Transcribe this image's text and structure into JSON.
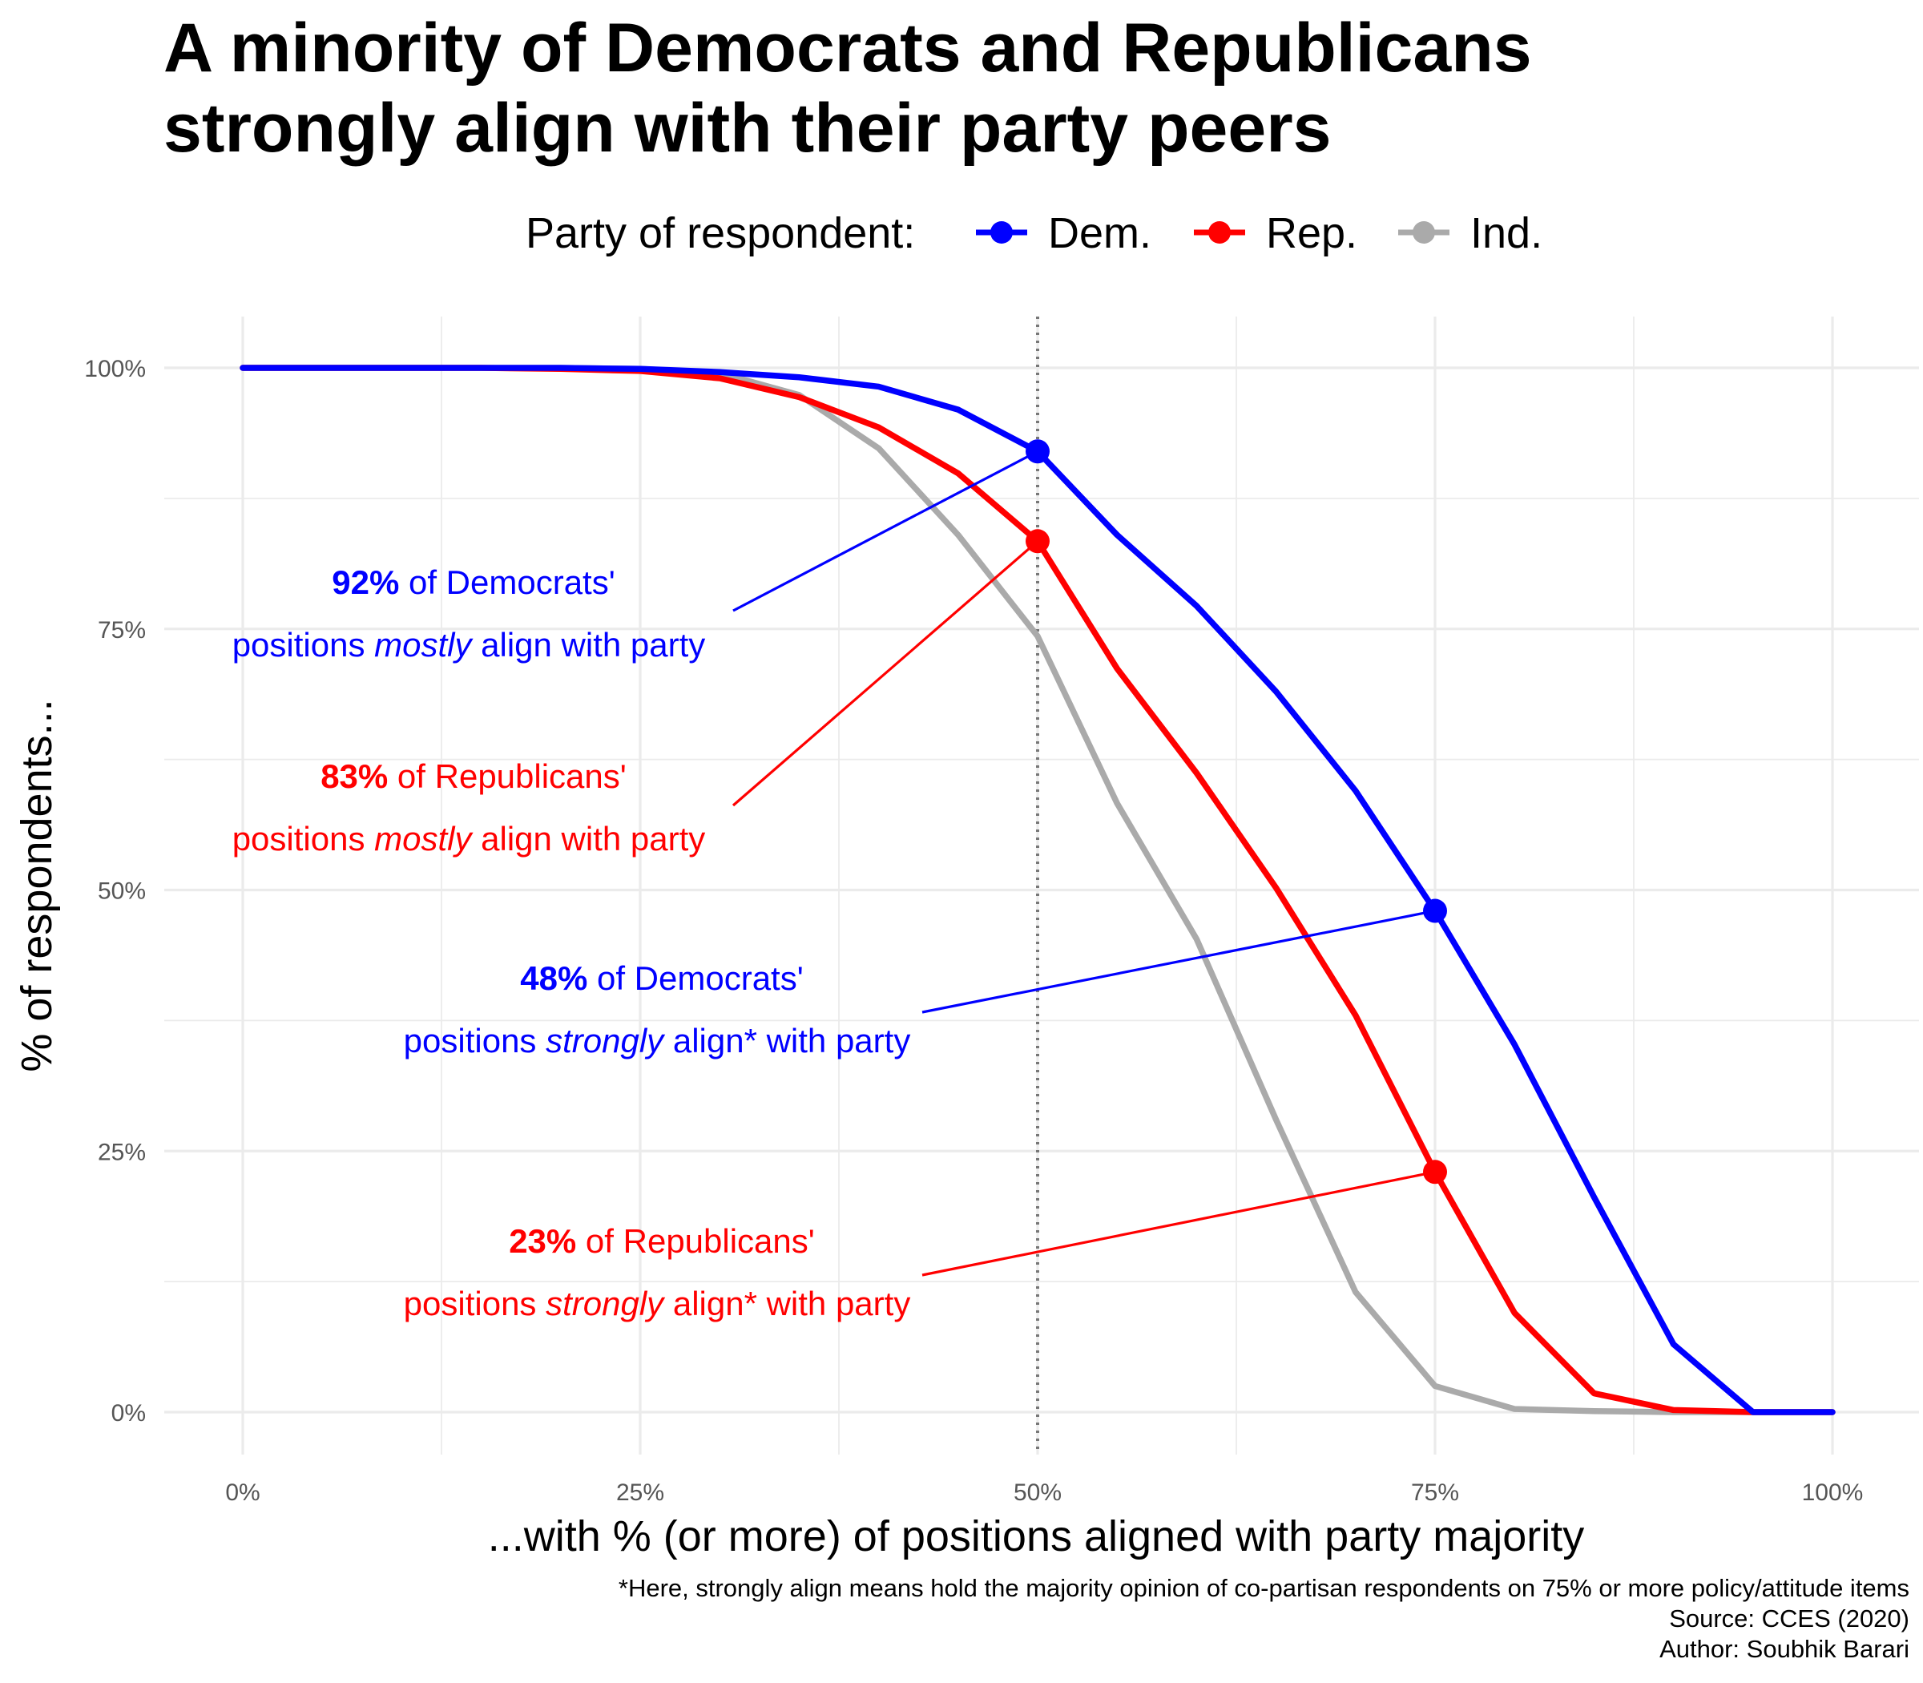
{
  "title_lines": [
    "A minority of Democrats and Republicans",
    "strongly align with their party peers"
  ],
  "legend": {
    "title": "Party of respondent:",
    "items": [
      {
        "label": "Dem.",
        "color": "#0000FF"
      },
      {
        "label": "Rep.",
        "color": "#FF0000"
      },
      {
        "label": "Ind.",
        "color": "#AAAAAA"
      }
    ]
  },
  "chart_data": {
    "type": "line",
    "xlabel": "...with % (or more) of positions aligned with party majority",
    "ylabel": "% of respondents...",
    "xlim": [
      0,
      100
    ],
    "ylim": [
      0,
      100
    ],
    "x_ticks": [
      "0%",
      "25%",
      "50%",
      "75%",
      "100%"
    ],
    "y_ticks": [
      "0%",
      "25%",
      "50%",
      "75%",
      "100%"
    ],
    "grid": true,
    "legend_position": "top",
    "reference_line_x": 50,
    "x": [
      0,
      5,
      10,
      15,
      20,
      25,
      30,
      35,
      40,
      45,
      50,
      55,
      60,
      65,
      70,
      75,
      80,
      85,
      90,
      95,
      100
    ],
    "series": [
      {
        "name": "Dem.",
        "color": "#0000FF",
        "values": [
          100,
          100,
          100,
          100,
          100,
          99.9,
          99.6,
          99.1,
          98.2,
          96.0,
          92.0,
          84.0,
          77.2,
          69.0,
          59.5,
          48.0,
          35.2,
          20.6,
          6.5,
          0,
          0
        ]
      },
      {
        "name": "Rep.",
        "color": "#FF0000",
        "values": [
          100,
          100,
          100,
          100,
          99.9,
          99.7,
          99.0,
          97.2,
          94.3,
          89.9,
          83.4,
          71.2,
          61.2,
          50.2,
          38.0,
          23.0,
          9.5,
          1.8,
          0.2,
          0,
          0
        ]
      },
      {
        "name": "Ind.",
        "color": "#AAAAAA",
        "values": [
          100,
          100,
          100,
          100,
          100,
          99.9,
          99.5,
          97.4,
          92.3,
          84.0,
          74.3,
          58.3,
          45.3,
          28.0,
          11.5,
          2.5,
          0.3,
          0.1,
          0,
          0,
          0
        ]
      }
    ],
    "highlight_points": [
      {
        "series": "Dem.",
        "x": 50,
        "y": 92
      },
      {
        "series": "Rep.",
        "x": 50,
        "y": 83.4
      },
      {
        "series": "Dem.",
        "x": 75,
        "y": 48
      },
      {
        "series": "Rep.",
        "x": 75,
        "y": 23
      }
    ],
    "annotations": [
      {
        "color": "#0000FF",
        "bold": "92%",
        "rest": " of Democrats'",
        "line2_pre": "positions ",
        "line2_em": "mostly",
        "line2_post": " align with party"
      },
      {
        "color": "#FF0000",
        "bold": "83%",
        "rest": " of Republicans'",
        "line2_pre": "positions ",
        "line2_em": "mostly",
        "line2_post": " align with party"
      },
      {
        "color": "#0000FF",
        "bold": "48%",
        "rest": " of Democrats'",
        "line2_pre": "positions ",
        "line2_em": "strongly",
        "line2_post": " align* with party"
      },
      {
        "color": "#FF0000",
        "bold": "23%",
        "rest": " of Republicans'",
        "line2_pre": "positions ",
        "line2_em": "strongly",
        "line2_post": " align* with party"
      }
    ]
  },
  "caption_lines": [
    "*Here, strongly align means hold the majority opinion of co-partisan respondents on 75% or more policy/attitude items",
    "Source: CCES (2020)",
    "Author: Soubhik Barari"
  ]
}
